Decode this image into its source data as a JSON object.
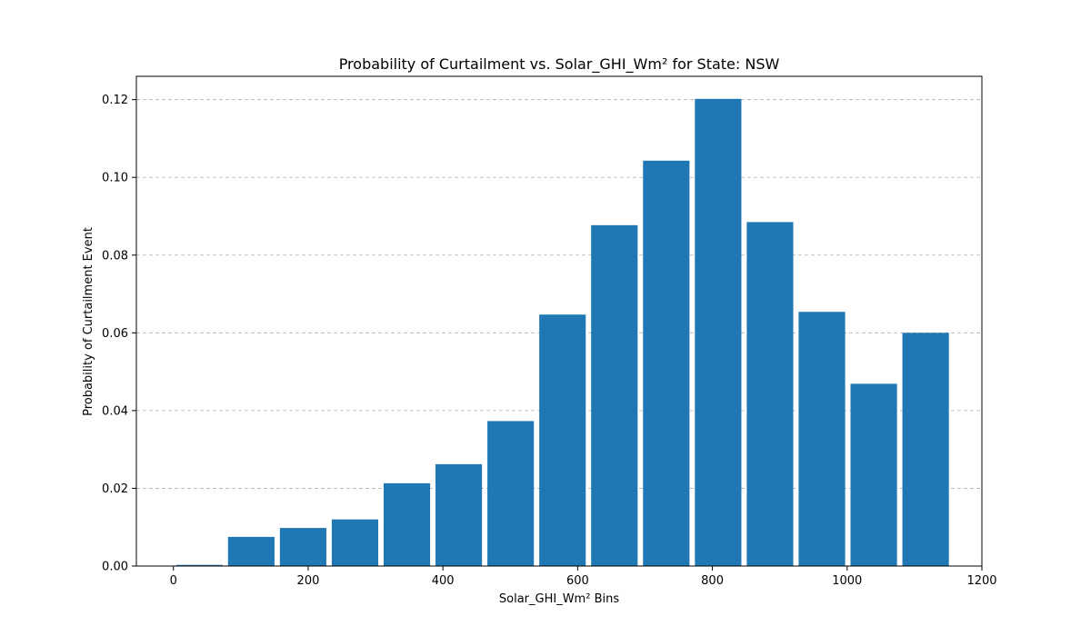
{
  "chart_data": {
    "type": "bar",
    "title": "Probability of Curtailment vs. Solar_GHI_Wm² for State: NSW",
    "xlabel": "Solar_GHI_Wm² Bins",
    "ylabel": "Probability of Curtailment Event",
    "xlim": [
      -55,
      1200
    ],
    "ylim": [
      0,
      0.126
    ],
    "xticks": [
      0,
      200,
      400,
      600,
      800,
      1000,
      1200
    ],
    "xtick_labels": [
      "0",
      "200",
      "400",
      "600",
      "800",
      "1000",
      "1200"
    ],
    "yticks": [
      0.0,
      0.02,
      0.04,
      0.06,
      0.08,
      0.1,
      0.12
    ],
    "ytick_labels": [
      "0.00",
      "0.02",
      "0.04",
      "0.06",
      "0.08",
      "0.10",
      "0.12"
    ],
    "grid": "y-dashed",
    "bar_color": "#1f77b4",
    "bar_width": 69,
    "x": [
      38.5,
      115.5,
      192.5,
      269.5,
      346.5,
      423.5,
      500.5,
      577.5,
      654.5,
      731.5,
      808.5,
      885.5,
      962.5,
      1039.5,
      1116.5
    ],
    "values": [
      0.0003,
      0.0075,
      0.0098,
      0.012,
      0.0213,
      0.0262,
      0.0373,
      0.0647,
      0.0877,
      0.1043,
      0.1202,
      0.0885,
      0.0654,
      0.0469,
      0.06
    ]
  }
}
